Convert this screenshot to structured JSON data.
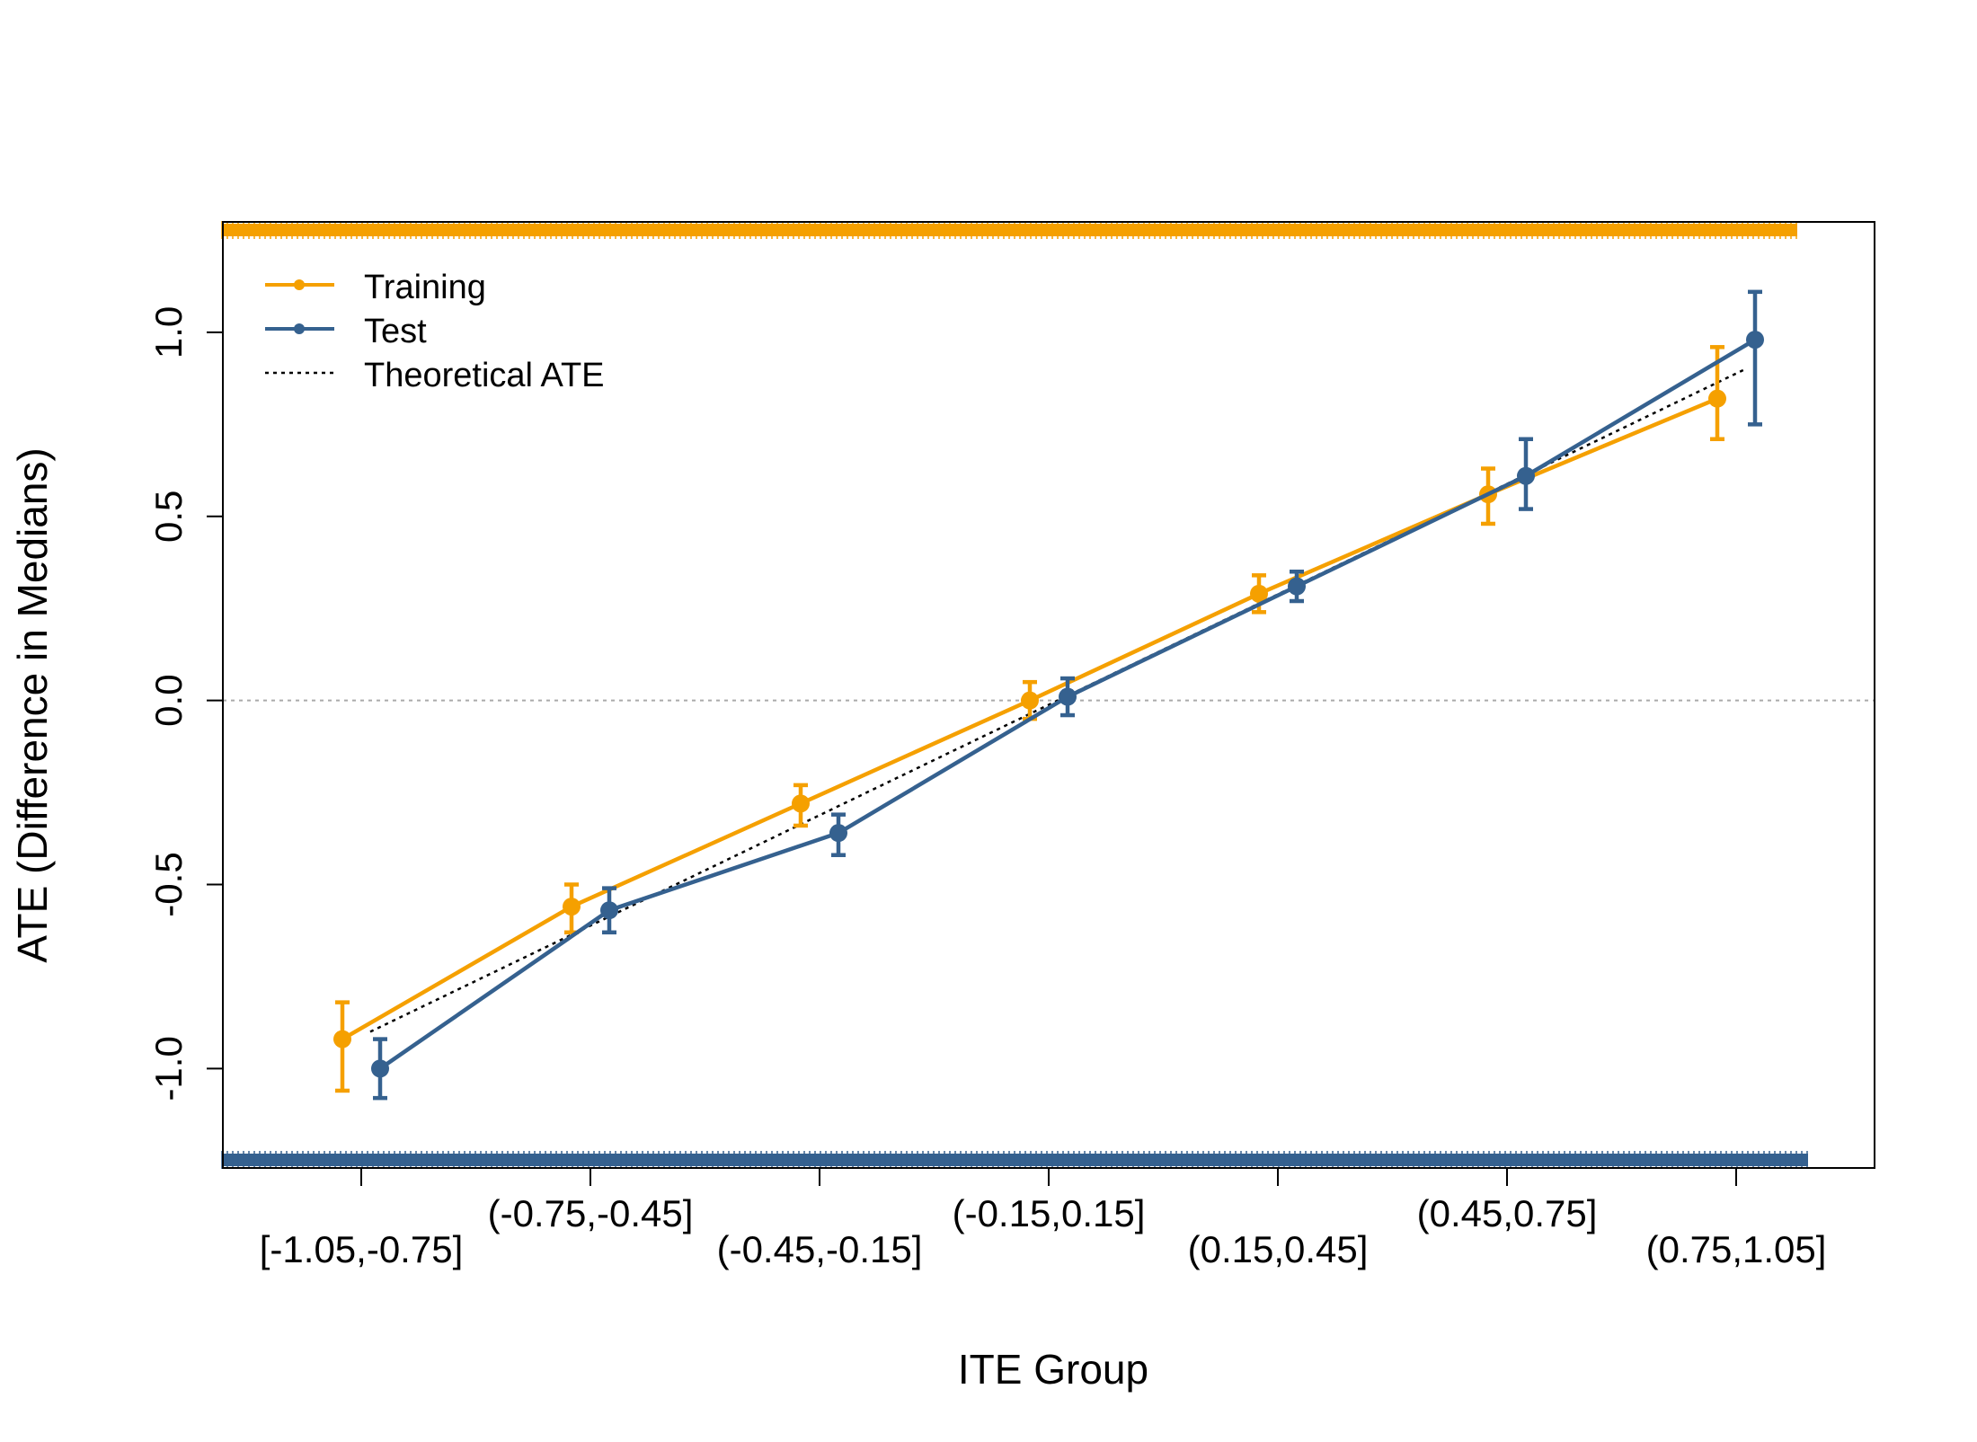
{
  "chart_data": {
    "type": "line",
    "title": "",
    "xlabel": "ITE Group",
    "ylabel": "ATE (Difference in Medians)",
    "categories": [
      "[-1.05,-0.75]",
      "(-0.75,-0.45]",
      "(-0.45,-0.15]",
      "(-0.15,0.15]",
      "(0.15,0.45]",
      "(0.45,0.75]",
      "(0.75,1.05]"
    ],
    "ylim": [
      -1.27,
      1.3
    ],
    "y_ticks": [
      "-1.0",
      "-0.5",
      "0.0",
      "0.5",
      "1.0"
    ],
    "reference_line": {
      "y": 0,
      "style": "dotted",
      "color": "#aaaaaa"
    },
    "legend": {
      "position": "top-left"
    },
    "series": [
      {
        "name": "Training",
        "color": "#F5A000",
        "values": [
          -0.92,
          -0.56,
          -0.28,
          0.0,
          0.29,
          0.56,
          0.82
        ],
        "lower": [
          -1.06,
          -0.63,
          -0.34,
          -0.05,
          0.24,
          0.48,
          0.71
        ],
        "upper": [
          -0.82,
          -0.5,
          -0.23,
          0.05,
          0.34,
          0.63,
          0.96
        ],
        "rug": "top"
      },
      {
        "name": "Test",
        "color": "#35618F",
        "values": [
          -1.0,
          -0.57,
          -0.36,
          0.01,
          0.31,
          0.61,
          0.98
        ],
        "lower": [
          -1.08,
          -0.63,
          -0.42,
          -0.04,
          0.27,
          0.52,
          0.75
        ],
        "upper": [
          -0.92,
          -0.51,
          -0.31,
          0.06,
          0.35,
          0.71,
          1.11
        ],
        "rug": "bottom"
      },
      {
        "name": "Theoretical ATE",
        "color": "#000000",
        "style": "dotted",
        "values": [
          -0.9,
          -0.6,
          -0.3,
          0.0,
          0.3,
          0.6,
          0.9
        ]
      }
    ]
  }
}
